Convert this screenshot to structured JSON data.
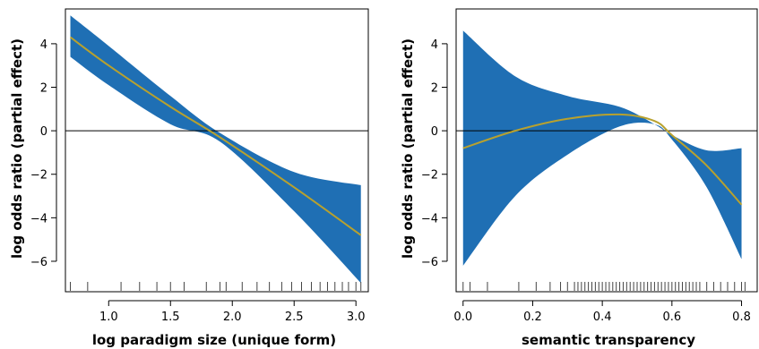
{
  "colors": {
    "band": "#1f6fb4",
    "curve": "#b8a12e",
    "axis": "#000000",
    "rug": "#444444"
  },
  "chart_data": [
    {
      "type": "line",
      "xlabel": "log paradigm size (unique form)",
      "ylabel": "log odds ratio (partial effect)",
      "xlim": [
        0.65,
        3.1
      ],
      "ylim": [
        -7.4,
        5.6
      ],
      "x_ticks": [
        1.0,
        1.5,
        2.0,
        2.5,
        3.0
      ],
      "x_tick_labels": [
        "1.0",
        "1.5",
        "2.0",
        "2.5",
        "3.0"
      ],
      "y_ticks": [
        -6,
        -4,
        -2,
        0,
        2,
        4
      ],
      "y_tick_labels": [
        "−6",
        "−4",
        "−2",
        "0",
        "2",
        "4"
      ],
      "reference_line": 0,
      "band": {
        "x": [
          0.69,
          1.0,
          1.5,
          1.9,
          2.5,
          3.04
        ],
        "upper": [
          5.3,
          3.9,
          1.6,
          -0.1,
          -1.9,
          -2.5
        ],
        "lower": [
          3.4,
          2.1,
          0.3,
          -0.5,
          -3.7,
          -7.0
        ]
      },
      "series": [
        {
          "x": [
            0.69,
            1.0,
            1.5,
            1.9,
            2.5,
            3.04
          ],
          "y": [
            4.3,
            3.0,
            1.1,
            -0.3,
            -2.6,
            -4.8
          ]
        }
      ],
      "rug": [
        0.69,
        0.83,
        1.1,
        1.25,
        1.39,
        1.5,
        1.61,
        1.79,
        1.9,
        1.95,
        2.08,
        2.2,
        2.3,
        2.4,
        2.48,
        2.56,
        2.64,
        2.71,
        2.77,
        2.83,
        2.89,
        2.94,
        3.0,
        3.04
      ]
    },
    {
      "type": "line",
      "xlabel": "semantic transparency",
      "ylabel": "log odds ratio (partial effect)",
      "xlim": [
        -0.02,
        0.845
      ],
      "ylim": [
        -7.4,
        5.6
      ],
      "x_ticks": [
        0.0,
        0.2,
        0.4,
        0.6,
        0.8
      ],
      "x_tick_labels": [
        "0.0",
        "0.2",
        "0.4",
        "0.6",
        "0.8"
      ],
      "y_ticks": [
        -6,
        -4,
        -2,
        0,
        2,
        4
      ],
      "y_tick_labels": [
        "−6",
        "−4",
        "−2",
        "0",
        "2",
        "4"
      ],
      "reference_line": 0,
      "band": {
        "x": [
          0.0,
          0.15,
          0.3,
          0.45,
          0.55,
          0.6,
          0.7,
          0.8
        ],
        "upper": [
          4.6,
          2.5,
          1.6,
          1.1,
          0.3,
          -0.2,
          -0.9,
          -0.8
        ],
        "lower": [
          -6.2,
          -3.0,
          -1.1,
          0.2,
          0.3,
          -0.4,
          -2.6,
          -5.9
        ]
      },
      "series": [
        {
          "x": [
            0.0,
            0.15,
            0.3,
            0.45,
            0.55,
            0.6,
            0.7,
            0.8
          ],
          "y": [
            -0.8,
            0.0,
            0.55,
            0.75,
            0.45,
            -0.2,
            -1.6,
            -3.4
          ]
        }
      ],
      "rug": [
        0.0,
        0.02,
        0.07,
        0.16,
        0.21,
        0.25,
        0.28,
        0.3,
        0.32,
        0.33,
        0.34,
        0.35,
        0.36,
        0.37,
        0.38,
        0.39,
        0.4,
        0.41,
        0.42,
        0.43,
        0.44,
        0.45,
        0.46,
        0.47,
        0.48,
        0.49,
        0.5,
        0.51,
        0.52,
        0.53,
        0.54,
        0.55,
        0.56,
        0.57,
        0.58,
        0.59,
        0.6,
        0.61,
        0.62,
        0.63,
        0.64,
        0.65,
        0.66,
        0.67,
        0.68,
        0.7,
        0.72,
        0.74,
        0.76,
        0.78,
        0.8,
        0.81
      ]
    }
  ]
}
